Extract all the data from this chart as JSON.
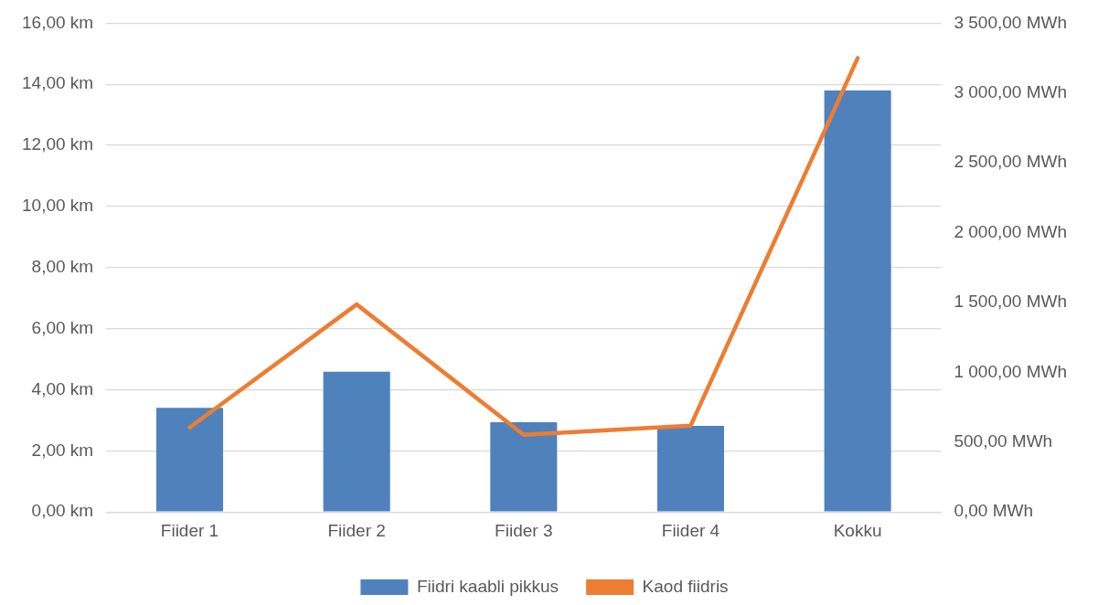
{
  "chart_data": {
    "type": "bar",
    "categories": [
      "Fiider 1",
      "Fiider 2",
      "Fiider 3",
      "Fiider 4",
      "Kokku"
    ],
    "series": [
      {
        "name": "Fiidri kaabli pikkus",
        "color": "#4f81bd",
        "values": [
          3.41,
          4.59,
          2.94,
          2.82,
          13.8
        ]
      },
      {
        "name": "Kaod fiidris",
        "type": "line",
        "axis": "y2",
        "color": "#ed7d31",
        "values": [
          605,
          1486,
          553,
          618,
          3250
        ]
      }
    ],
    "ylim": [
      0,
      16
    ],
    "yticks": [
      {
        "value": 0,
        "label": "0,00 km"
      },
      {
        "value": 2,
        "label": "2,00 km"
      },
      {
        "value": 4,
        "label": "4,00 km"
      },
      {
        "value": 6,
        "label": "6,00 km"
      },
      {
        "value": 8,
        "label": "8,00 km"
      },
      {
        "value": 10,
        "label": "10,00 km"
      },
      {
        "value": 12,
        "label": "12,00 km"
      },
      {
        "value": 14,
        "label": "14,00 km"
      },
      {
        "value": 16,
        "label": "16,00 km"
      }
    ],
    "y2lim": [
      0,
      3500
    ],
    "y2ticks": [
      {
        "value": 0,
        "label": "0,00 MWh"
      },
      {
        "value": 500,
        "label": "500,00 MWh"
      },
      {
        "value": 1000,
        "label": "1 000,00 MWh"
      },
      {
        "value": 1500,
        "label": "1 500,00 MWh"
      },
      {
        "value": 2000,
        "label": "2 000,00 MWh"
      },
      {
        "value": 2500,
        "label": "2 500,00 MWh"
      },
      {
        "value": 3000,
        "label": "3 000,00 MWh"
      },
      {
        "value": 3500,
        "label": "3 500,00 MWh"
      }
    ],
    "grid": "y",
    "legend": "bottom",
    "marker": "none"
  }
}
